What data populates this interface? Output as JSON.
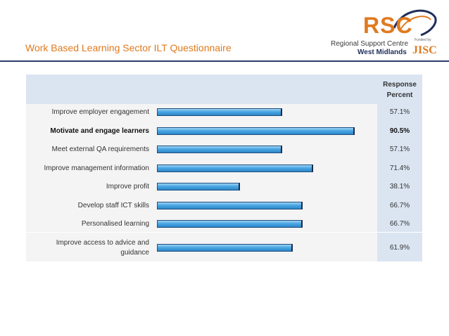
{
  "header": {
    "title": "Work Based Learning Sector ILT Questionnaire"
  },
  "logo": {
    "rsc": "RSC",
    "line1": "Regional Support Centre",
    "line2": "West Midlands",
    "funded": "Funded by",
    "jisc": "JISC"
  },
  "chart_data": {
    "type": "bar",
    "orientation": "horizontal",
    "column_header": "Response Percent",
    "categories": [
      "Improve employer engagement",
      "Motivate and engage learners",
      "Meet external QA requirements",
      "Improve management information",
      "Improve profit",
      "Develop staff ICT skills",
      "Personalised learning",
      "Improve access to advice and guidance"
    ],
    "values": [
      57.1,
      90.5,
      57.1,
      71.4,
      38.1,
      66.7,
      66.7,
      61.9
    ],
    "value_labels": [
      "57.1%",
      "90.5%",
      "57.1%",
      "71.4%",
      "38.1%",
      "66.7%",
      "66.7%",
      "61.9%"
    ],
    "highlight_index": 1,
    "xlim": [
      0,
      100
    ],
    "colors": {
      "bar": "#4aa6e3",
      "bar_edge": "#1f4f80",
      "header_bg": "#dbe5f2"
    }
  }
}
